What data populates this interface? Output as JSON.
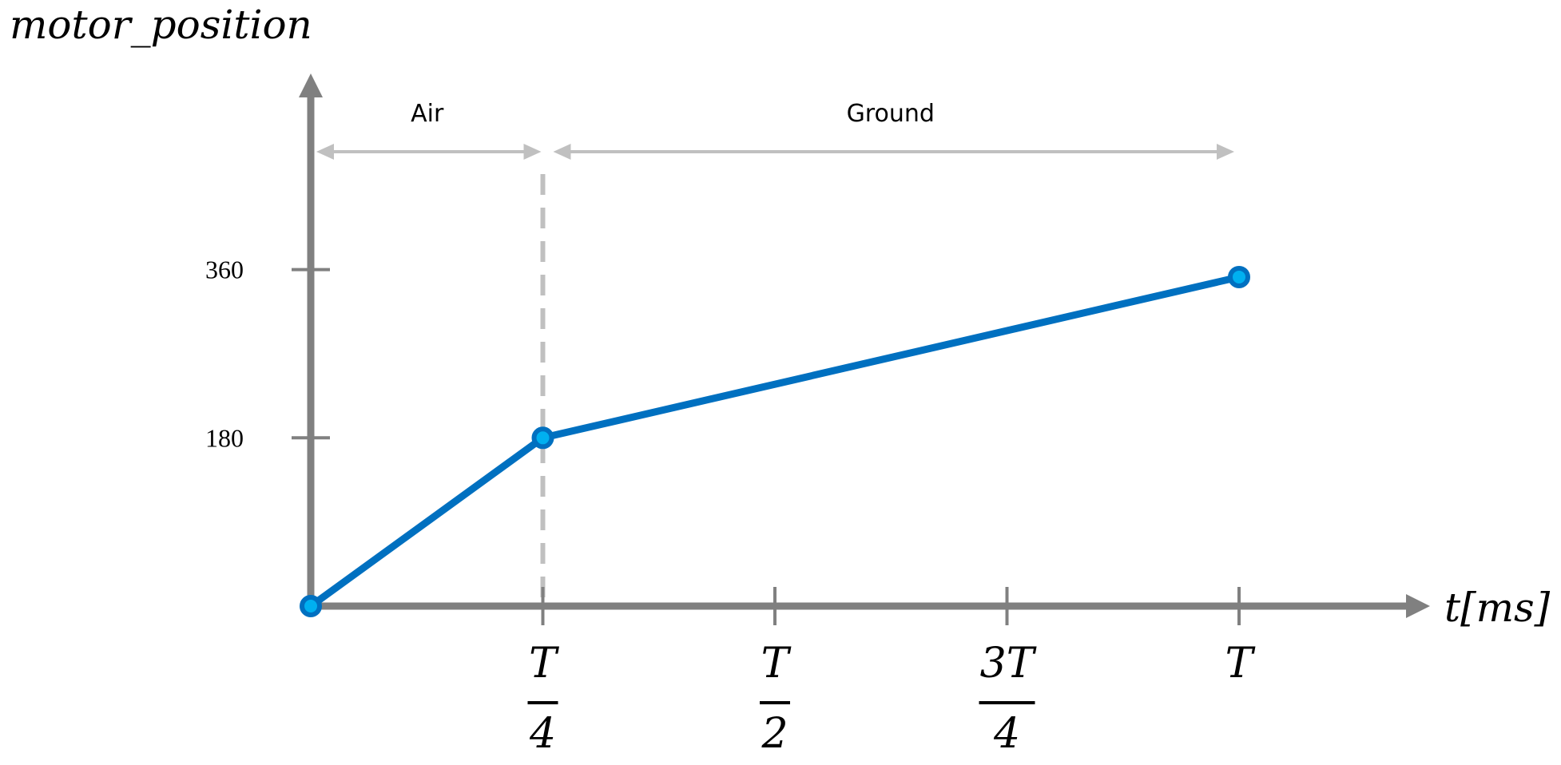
{
  "chart_data": {
    "type": "line",
    "ylabel": "motor_position",
    "xlabel": "t[ms]",
    "x_period_label": "T",
    "xlim_periods": [
      0,
      1.22
    ],
    "ylim": [
      0,
      500
    ],
    "yticks": [
      {
        "value": 180,
        "label": "180"
      },
      {
        "value": 360,
        "label": "360"
      }
    ],
    "xticks": [
      {
        "value": 0.25,
        "label": "T/4",
        "num": "T",
        "den": "4"
      },
      {
        "value": 0.5,
        "label": "T/2",
        "num": "T",
        "den": "2"
      },
      {
        "value": 0.75,
        "label": "3T/4",
        "num": "3T",
        "den": "4"
      },
      {
        "value": 1.0,
        "label": "T",
        "num": "T",
        "den": ""
      }
    ],
    "series": [
      {
        "x": [
          0,
          0.25,
          1.0
        ],
        "y": [
          0,
          180,
          352
        ]
      }
    ],
    "phases": [
      {
        "label": "Air",
        "from": 0,
        "to": 0.25
      },
      {
        "label": "Ground",
        "from": 0.25,
        "to": 1.0
      }
    ],
    "divider_x": 0.25,
    "grid": false,
    "colors": {
      "line": "#0070c0",
      "marker_fill": "#00b0f0",
      "axis": "#808080",
      "phase_arrow": "#c0c0c0"
    }
  }
}
